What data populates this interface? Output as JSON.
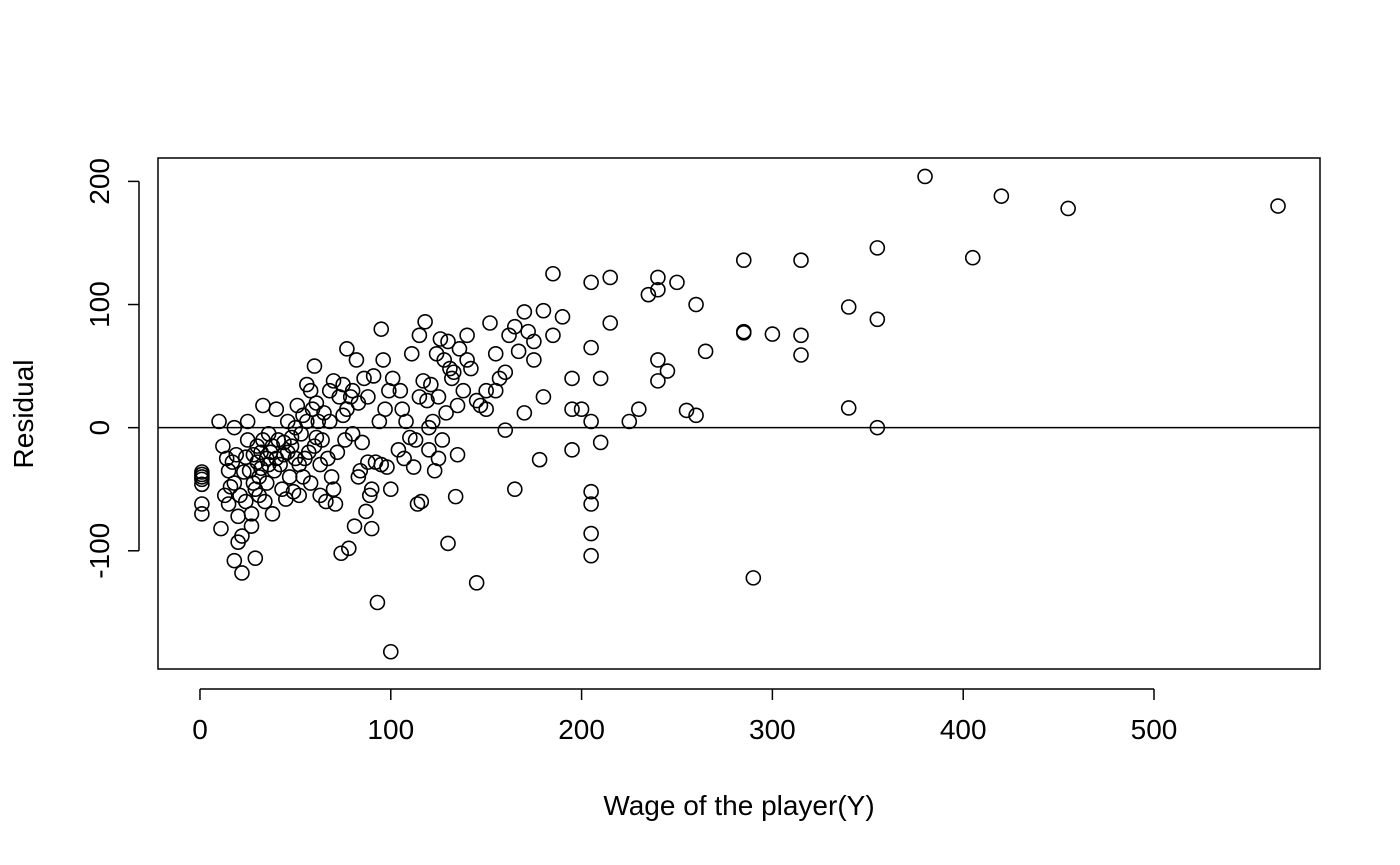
{
  "chart_data": {
    "type": "scatter",
    "title": "",
    "xlabel": "Wage of the player(Y)",
    "ylabel": "Residual",
    "xlim": [
      -22,
      587
    ],
    "ylim": [
      -196,
      219
    ],
    "xticks": [
      0,
      100,
      200,
      300,
      400,
      500
    ],
    "yticks": [
      -100,
      0,
      100,
      200
    ],
    "xtick_labels": [
      "0",
      "100",
      "200",
      "300",
      "400",
      "500"
    ],
    "ytick_labels": [
      "-100",
      "0",
      "100",
      "200"
    ],
    "reference_line_y": 0,
    "grid": false,
    "marker": "open-circle",
    "x": [
      1,
      1,
      1,
      1,
      1,
      1,
      1,
      10,
      11,
      12,
      13,
      14,
      15,
      15,
      16,
      17,
      18,
      18,
      18,
      19,
      20,
      20,
      21,
      22,
      22,
      23,
      24,
      24,
      25,
      25,
      26,
      27,
      27,
      28,
      28,
      29,
      29,
      30,
      30,
      31,
      31,
      32,
      32,
      33,
      33,
      34,
      35,
      35,
      36,
      36,
      37,
      38,
      38,
      39,
      40,
      40,
      41,
      42,
      43,
      44,
      44,
      45,
      46,
      46,
      47,
      48,
      48,
      49,
      50,
      50,
      51,
      52,
      52,
      53,
      54,
      54,
      55,
      56,
      56,
      57,
      58,
      58,
      59,
      60,
      60,
      61,
      61,
      62,
      63,
      63,
      64,
      65,
      66,
      67,
      68,
      68,
      69,
      70,
      70,
      71,
      72,
      73,
      74,
      75,
      75,
      76,
      77,
      77,
      78,
      79,
      80,
      80,
      81,
      82,
      83,
      83,
      84,
      85,
      86,
      87,
      88,
      88,
      89,
      90,
      90,
      91,
      92,
      93,
      94,
      95,
      95,
      96,
      97,
      98,
      99,
      100,
      100,
      101,
      104,
      105,
      106,
      107,
      108,
      110,
      111,
      112,
      113,
      114,
      115,
      115,
      116,
      117,
      118,
      119,
      120,
      120,
      121,
      122,
      123,
      124,
      125,
      125,
      126,
      127,
      128,
      129,
      130,
      130,
      131,
      132,
      133,
      134,
      135,
      135,
      136,
      138,
      140,
      140,
      142,
      145,
      145,
      147,
      150,
      150,
      152,
      155,
      155,
      157,
      160,
      160,
      162,
      165,
      165,
      167,
      170,
      170,
      172,
      175,
      175,
      178,
      180,
      180,
      185,
      185,
      190,
      195,
      195,
      195,
      200,
      205,
      205,
      205,
      205,
      205,
      205,
      205,
      210,
      210,
      215,
      215,
      225,
      230,
      235,
      240,
      240,
      240,
      240,
      245,
      250,
      255,
      260,
      260,
      265,
      285,
      285,
      285,
      290,
      300,
      315,
      315,
      315,
      340,
      340,
      355,
      355,
      355,
      380,
      405,
      420,
      455,
      565
    ],
    "y": [
      -38,
      -42,
      -46,
      -62,
      -70,
      -36,
      -40,
      5,
      -82,
      -15,
      -55,
      -25,
      -62,
      -35,
      -48,
      -28,
      -108,
      -45,
      0,
      -22,
      -72,
      -93,
      -55,
      -118,
      -88,
      -36,
      -60,
      -24,
      -10,
      5,
      -35,
      -80,
      -70,
      -22,
      -45,
      -50,
      -106,
      -28,
      -15,
      -40,
      -55,
      -20,
      -33,
      -10,
      18,
      -60,
      -25,
      -45,
      -5,
      -30,
      -20,
      -70,
      -15,
      -35,
      15,
      -25,
      -10,
      -30,
      -50,
      -12,
      -22,
      -58,
      -20,
      5,
      -40,
      -8,
      -15,
      -52,
      -25,
      0,
      18,
      -55,
      -30,
      -5,
      -40,
      10,
      -25,
      35,
      5,
      -20,
      30,
      -45,
      15,
      -15,
      50,
      -8,
      20,
      5,
      -55,
      -30,
      -10,
      12,
      -60,
      -25,
      5,
      30,
      -40,
      -50,
      38,
      -62,
      -20,
      25,
      -102,
      35,
      10,
      -10,
      15,
      64,
      -98,
      25,
      -5,
      30,
      -80,
      55,
      -40,
      20,
      -35,
      -12,
      40,
      -68,
      -28,
      25,
      -55,
      -82,
      -50,
      42,
      -28,
      -142,
      5,
      80,
      -30,
      55,
      15,
      -32,
      30,
      -182,
      -50,
      40,
      -18,
      30,
      15,
      -25,
      5,
      -8,
      60,
      -32,
      -10,
      -62,
      25,
      75,
      -60,
      38,
      86,
      22,
      -18,
      0,
      35,
      5,
      -35,
      60,
      -25,
      25,
      72,
      -10,
      55,
      12,
      -94,
      70,
      48,
      40,
      45,
      -56,
      18,
      -22,
      64,
      30,
      75,
      55,
      48,
      -126,
      22,
      18,
      15,
      30,
      85,
      30,
      60,
      40,
      -2,
      45,
      75,
      82,
      -50,
      62,
      12,
      94,
      78,
      70,
      55,
      -26,
      95,
      25,
      125,
      75,
      90,
      40,
      15,
      -18,
      15,
      65,
      118,
      -52,
      -62,
      -86,
      -104,
      5,
      40,
      -12,
      122,
      85,
      5,
      15,
      108,
      122,
      112,
      55,
      38,
      46,
      118,
      14,
      100,
      10,
      62,
      136,
      78,
      77,
      -122,
      76,
      59,
      136,
      75,
      98,
      16,
      146,
      0,
      88,
      204,
      138,
      188,
      178,
      180
    ]
  }
}
